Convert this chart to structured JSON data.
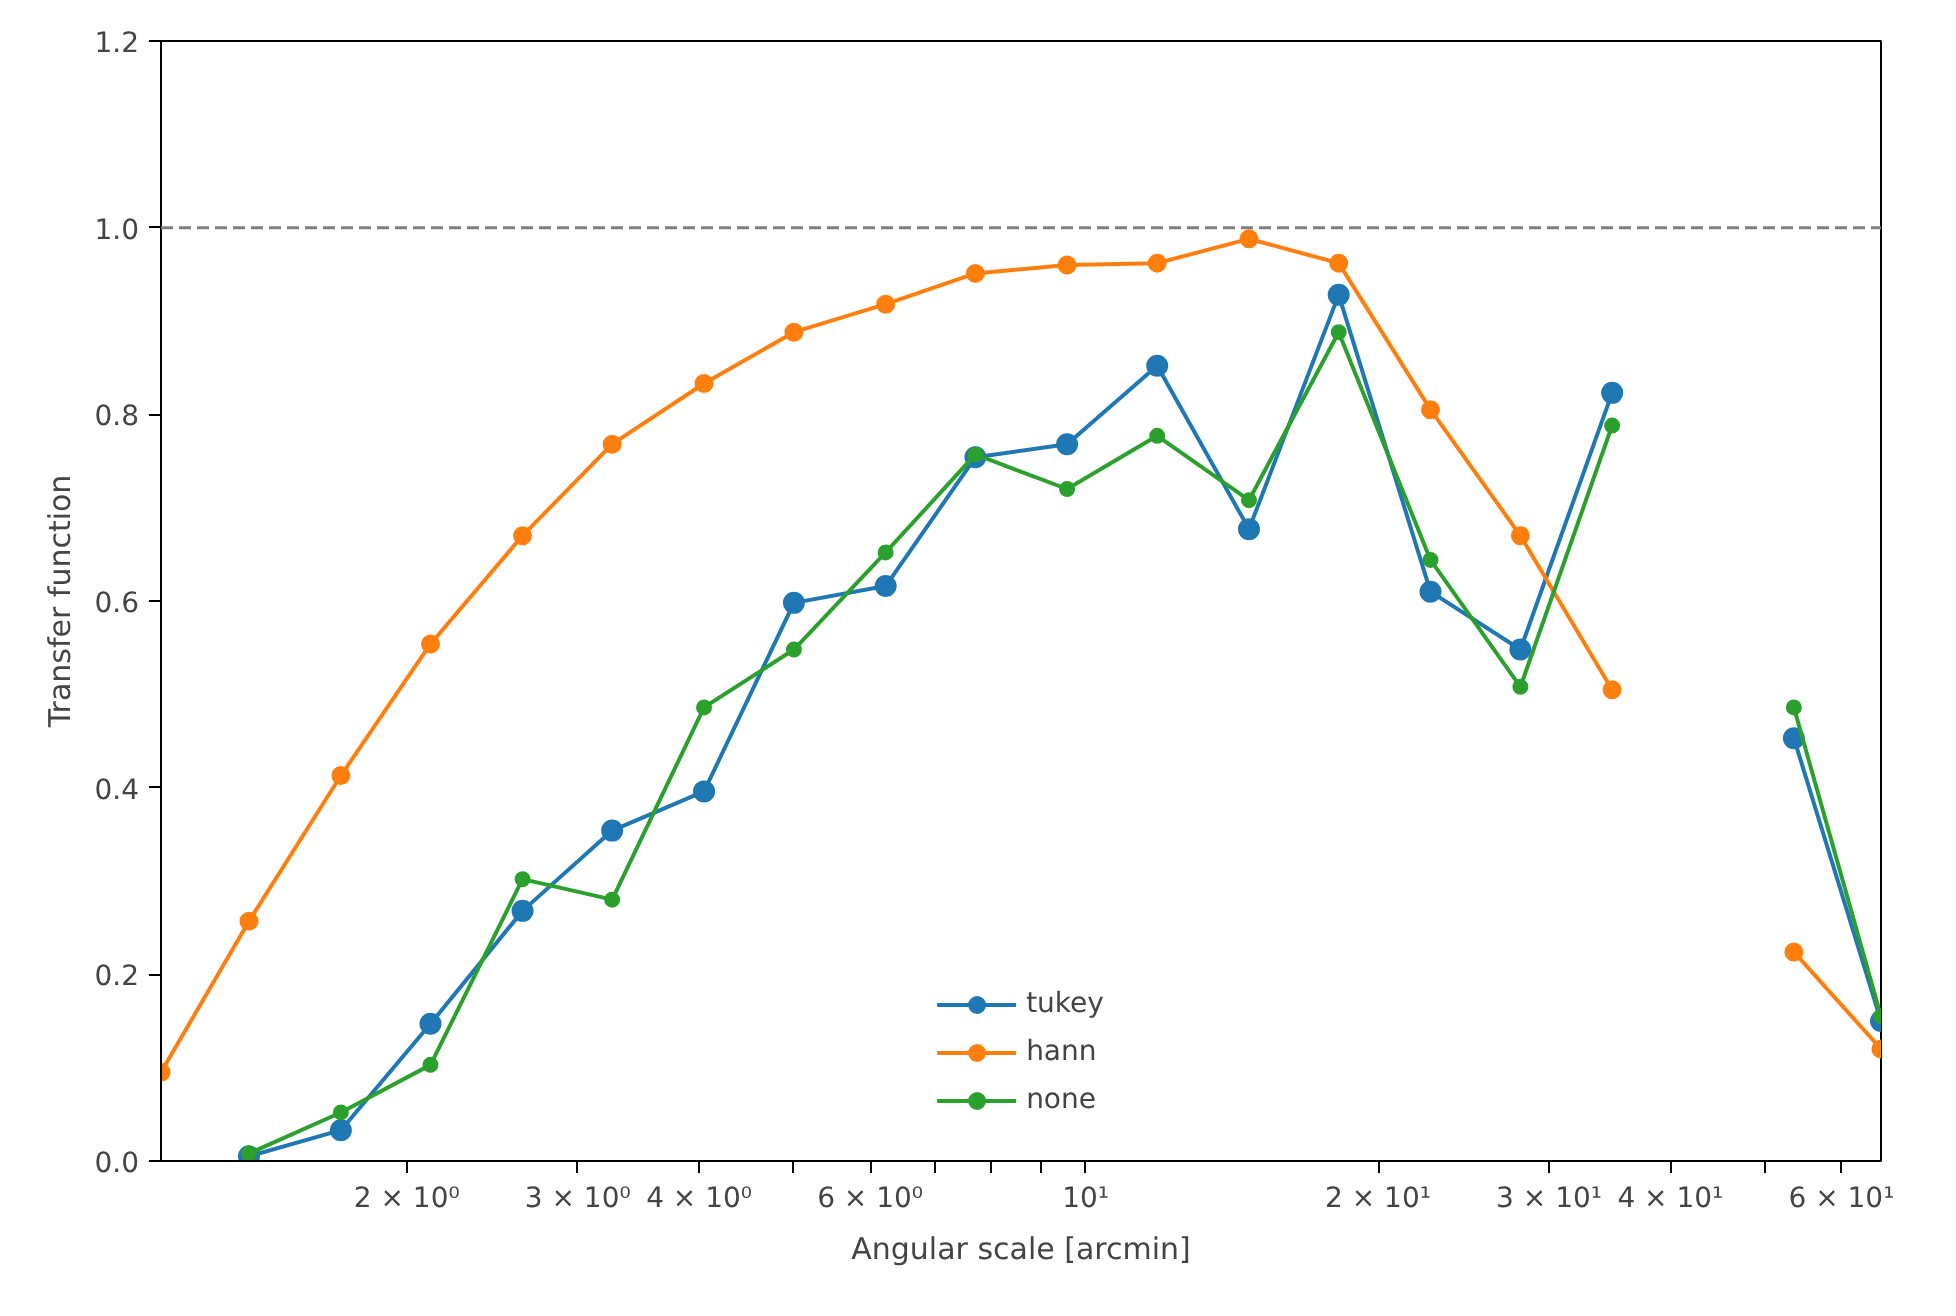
{
  "chart_data": {
    "type": "line",
    "xlabel": "Angular scale [arcmin]",
    "ylabel": "Transfer function",
    "log": "x",
    "grid": false,
    "legend": "bottom",
    "marker": "circle",
    "line_style": "solid",
    "x": [
      1.117,
      1.376,
      1.711,
      2.116,
      2.632,
      3.255,
      4.047,
      5.008,
      6.225,
      7.7,
      9.57,
      11.85,
      14.73,
      18.22,
      22.65,
      28.03,
      34.84,
      43.1,
      53.6,
      65.9
    ],
    "xlim": [
      1.117,
      65.9
    ],
    "xticks": [
      {
        "value": 2,
        "label": "2 × 10⁰"
      },
      {
        "value": 3,
        "label": "3 × 10⁰"
      },
      {
        "value": 4,
        "label": "4 × 10⁰"
      },
      {
        "value": 5,
        "label": null
      },
      {
        "value": 6,
        "label": "6 × 10⁰"
      },
      {
        "value": 7,
        "label": null
      },
      {
        "value": 8,
        "label": null
      },
      {
        "value": 9,
        "label": null
      },
      {
        "value": 10,
        "label": "10¹"
      },
      {
        "value": 20,
        "label": "2 × 10¹"
      },
      {
        "value": 30,
        "label": "3 × 10¹"
      },
      {
        "value": 40,
        "label": "4 × 10¹"
      },
      {
        "value": 50,
        "label": null
      },
      {
        "value": 60,
        "label": "6 × 10¹"
      }
    ],
    "ylim": [
      0,
      1.2
    ],
    "yticks": [
      {
        "value": 0,
        "label": "0.0"
      },
      {
        "value": 0.2,
        "label": "0.2"
      },
      {
        "value": 0.4,
        "label": "0.4"
      },
      {
        "value": 0.6,
        "label": "0.6"
      },
      {
        "value": 0.8,
        "label": "0.8"
      },
      {
        "value": 1.0,
        "label": "1.0"
      },
      {
        "value": 1.2,
        "label": "1.2"
      }
    ],
    "ref_lines": [
      {
        "axis": "y",
        "value": 1.0,
        "label": null,
        "color": "#808080",
        "line_style": "dashed"
      }
    ],
    "series": [
      {
        "name": "tukey",
        "color": "#1f77b4",
        "values": [
          null,
          0.005,
          0.033,
          0.147,
          0.268,
          0.354,
          0.396,
          0.598,
          0.616,
          0.754,
          0.768,
          0.852,
          0.677,
          0.928,
          0.61,
          0.548,
          0.823,
          null,
          0.453,
          0.15
        ]
      },
      {
        "name": "hann",
        "color": "#ff7f0e",
        "values": [
          0.095,
          0.257,
          0.413,
          0.554,
          0.67,
          0.768,
          0.833,
          0.888,
          0.918,
          0.951,
          0.96,
          0.962,
          0.988,
          0.962,
          0.805,
          0.67,
          0.505,
          null,
          0.224,
          0.12
        ]
      },
      {
        "name": "none",
        "color": "#2ca02c",
        "values": [
          null,
          0.008,
          0.052,
          0.103,
          0.302,
          0.28,
          0.486,
          0.548,
          0.652,
          0.757,
          0.72,
          0.777,
          0.708,
          0.888,
          0.644,
          0.508,
          0.788,
          null,
          0.486,
          0.155
        ]
      }
    ]
  }
}
